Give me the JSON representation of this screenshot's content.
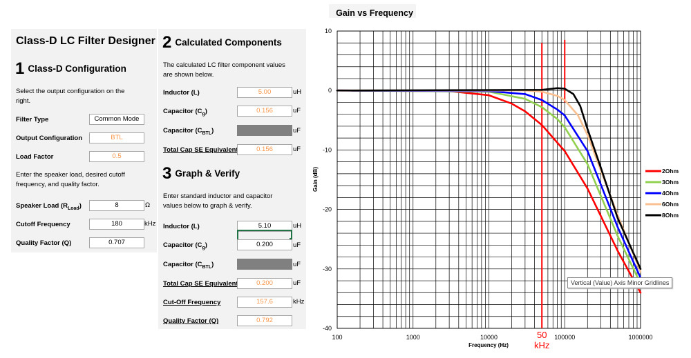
{
  "app": {
    "title": "Class-D LC Filter Designer"
  },
  "section1": {
    "num": "1",
    "title": "Class-D Configuration",
    "intro_1": "Select the output configuration on the",
    "intro_2": "right.",
    "filter_type_label": "Filter Type",
    "filter_type": "Common Mode",
    "output_config_label": "Output Configuration",
    "output_config": "BTL",
    "load_factor_label": "Load Factor",
    "load_factor": "0.5",
    "note_1": "Enter the speaker load, desired cutoff",
    "note_2": "frequency, and quality factor.",
    "speaker_load_label": "Speaker Load (R",
    "speaker_load_sub": "Load",
    "speaker_load_close": ")",
    "speaker_load": "8",
    "speaker_load_unit": "Ω",
    "cutoff_label": "Cutoff Frequency",
    "cutoff": "180",
    "cutoff_unit": "kHz",
    "q_label": "Quality Factor (Q)",
    "q": "0.707"
  },
  "section2": {
    "num": "2",
    "title": "Calculated Components",
    "intro_1": "The calculated LC filter component values",
    "intro_2": "are shown below.",
    "inductor_label": "Inductor (L)",
    "inductor": "5.00",
    "inductor_unit": "uH",
    "cap_g_label": "Capacitor (C",
    "cap_g_sub": "g",
    "cap_g_close": ")",
    "cap_g": "0.156",
    "cap_g_unit": "uF",
    "cap_btl_label": "Capacitor (C",
    "cap_btl_sub": "BTL",
    "cap_btl_close": ")",
    "cap_btl_unit": "uF",
    "total_cap_label": "Total Cap SE Equivalent",
    "total_cap": "0.156",
    "total_cap_unit": "uF"
  },
  "section3": {
    "num": "3",
    "title": "Graph & Verify",
    "intro_1": "Enter standard inductor and capacitor",
    "intro_2": "values below to graph & verify.",
    "inductor_label": "Inductor (L)",
    "inductor": "5.10",
    "inductor_unit": "uH",
    "cap_g_label": "Capacitor (C",
    "cap_g_sub": "g",
    "cap_g_close": ")",
    "cap_g": "0.200",
    "cap_g_unit": "uF",
    "cap_btl_label": "Capacitor (C",
    "cap_btl_sub": "BTL",
    "cap_btl_close": ")",
    "cap_btl_unit": "uF",
    "total_cap_label": "Total Cap SE Equivalent",
    "total_cap": "0.200",
    "total_cap_unit": "uF",
    "cutoff_label": "Cut-Off Frequency",
    "cutoff": "157.6",
    "cutoff_unit": "kHz",
    "q_label": "Quality Factor (Q)",
    "q": "0.792"
  },
  "tooltip": "Vertical (Value) Axis Minor Gridlines",
  "colors": {
    "accent_orange": "#f7964a",
    "selection_green": "#217346",
    "marker_red": "#ff0000"
  },
  "chart_data": {
    "type": "line",
    "title": "Gain vs Frequency",
    "xlabel": "Frequency (Hz)",
    "ylabel": "Gain (dB)",
    "xscale": "log",
    "xlim": [
      100,
      1000000
    ],
    "ylim": [
      -40,
      10
    ],
    "xticks": [
      "100",
      "1000",
      "10000",
      "100000",
      "1000000"
    ],
    "yticks": [
      "10",
      "0",
      "-10",
      "-20",
      "-30",
      "-40"
    ],
    "grid": true,
    "legend": "right",
    "series": [
      {
        "name": "2Ohm",
        "color": "#ff0000",
        "x": [
          100,
          3000,
          10000,
          20000,
          30000,
          50000,
          100000,
          200000,
          500000,
          1000000
        ],
        "y": [
          0,
          -0.1,
          -0.8,
          -2.2,
          -3.5,
          -5.8,
          -10.2,
          -16.5,
          -27,
          -34
        ]
      },
      {
        "name": "3Ohm",
        "color": "#92d050",
        "x": [
          100,
          10000,
          30000,
          50000,
          80000,
          100000,
          200000,
          500000,
          1000000
        ],
        "y": [
          0,
          -0.2,
          -1.4,
          -2.8,
          -4.8,
          -6.2,
          -12.4,
          -24.5,
          -32.5
        ]
      },
      {
        "name": "4Ohm",
        "color": "#0000ff",
        "x": [
          100,
          10000,
          30000,
          50000,
          80000,
          100000,
          200000,
          500000,
          1000000
        ],
        "y": [
          0,
          -0.1,
          -0.6,
          -1.6,
          -3.2,
          -4.2,
          -10.2,
          -23,
          -31.5
        ]
      },
      {
        "name": "6Ohm",
        "color": "#fac090",
        "x": [
          100,
          10000,
          30000,
          50000,
          80000,
          100000,
          150000,
          200000,
          500000,
          1000000
        ],
        "y": [
          0,
          0,
          0,
          -0.2,
          -0.9,
          -1.6,
          -4.2,
          -7.5,
          -21,
          -30.5
        ]
      },
      {
        "name": "8Ohm",
        "color": "#000000",
        "x": [
          100,
          50000,
          80000,
          100000,
          130000,
          160000,
          200000,
          300000,
          500000,
          1000000
        ],
        "y": [
          0,
          0.1,
          0.4,
          0.3,
          -0.6,
          -2.6,
          -6.5,
          -13,
          -21.5,
          -30
        ]
      }
    ],
    "markers": [
      {
        "x": 50000,
        "label_1": "50",
        "label_2": "kHz",
        "y_from": -40,
        "y_to": 8,
        "style": "line"
      },
      {
        "x": 100000,
        "y_from": -2.0,
        "y_to": 8.5,
        "style": "short"
      }
    ]
  }
}
